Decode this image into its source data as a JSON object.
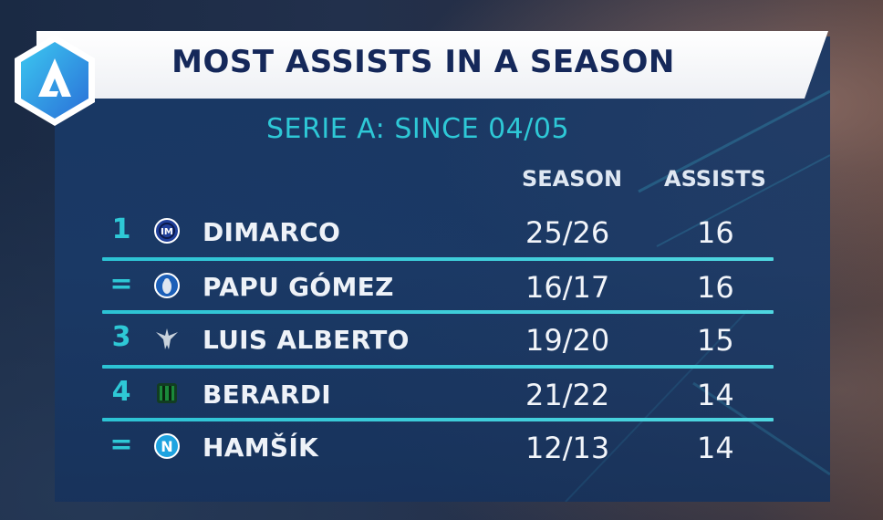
{
  "title": "MOST ASSISTS IN A SEASON",
  "subtitle": "SERIE A: SINCE 04/05",
  "columns": {
    "season": "SEASON",
    "assists": "ASSISTS"
  },
  "rows": [
    {
      "rank": "1",
      "club_icon": "inter-crest-icon",
      "player": "DIMARCO",
      "season": "25/26",
      "assists": "16"
    },
    {
      "rank": "=",
      "club_icon": "atalanta-crest-icon",
      "player": "PAPU GÓMEZ",
      "season": "16/17",
      "assists": "16"
    },
    {
      "rank": "3",
      "club_icon": "lazio-crest-icon",
      "player": "LUIS ALBERTO",
      "season": "19/20",
      "assists": "15"
    },
    {
      "rank": "4",
      "club_icon": "sassuolo-crest-icon",
      "player": "BERARDI",
      "season": "21/22",
      "assists": "14"
    },
    {
      "rank": "=",
      "club_icon": "napoli-crest-icon",
      "player": "HAMŠÍK",
      "season": "12/13",
      "assists": "14"
    }
  ],
  "colors": {
    "accent": "#2ec8d6",
    "title_text": "#15285a",
    "panel": "#1a3a68"
  }
}
